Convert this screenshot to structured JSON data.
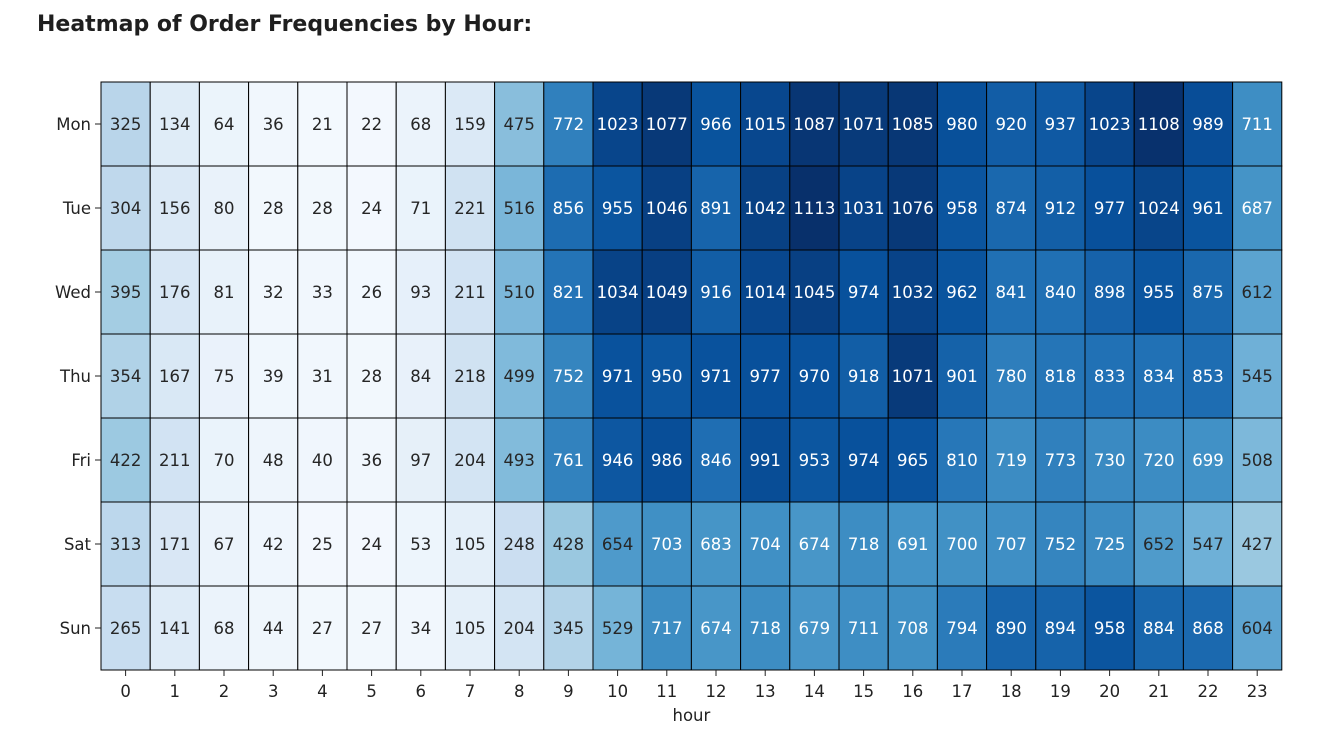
{
  "heading": "Heatmap of Order Frequencies by Hour:",
  "chart_data": {
    "type": "heatmap",
    "title": "",
    "xlabel": "hour",
    "ylabel": "",
    "colormap": "Blues",
    "color_range": [
      0,
      1113
    ],
    "cell_border": "#000000",
    "grid": false,
    "legend": "none",
    "x": [
      "0",
      "1",
      "2",
      "3",
      "4",
      "5",
      "6",
      "7",
      "8",
      "9",
      "10",
      "11",
      "12",
      "13",
      "14",
      "15",
      "16",
      "17",
      "18",
      "19",
      "20",
      "21",
      "22",
      "23"
    ],
    "y": [
      "Mon",
      "Tue",
      "Wed",
      "Thu",
      "Fri",
      "Sat",
      "Sun"
    ],
    "values": [
      [
        325,
        134,
        64,
        36,
        21,
        22,
        68,
        159,
        475,
        772,
        1023,
        1077,
        966,
        1015,
        1087,
        1071,
        1085,
        980,
        920,
        937,
        1023,
        1108,
        989,
        711
      ],
      [
        304,
        156,
        80,
        28,
        28,
        24,
        71,
        221,
        516,
        856,
        955,
        1046,
        891,
        1042,
        1113,
        1031,
        1076,
        958,
        874,
        912,
        977,
        1024,
        961,
        687
      ],
      [
        395,
        176,
        81,
        32,
        33,
        26,
        93,
        211,
        510,
        821,
        1034,
        1049,
        916,
        1014,
        1045,
        974,
        1032,
        962,
        841,
        840,
        898,
        955,
        875,
        612
      ],
      [
        354,
        167,
        75,
        39,
        31,
        28,
        84,
        218,
        499,
        752,
        971,
        950,
        971,
        977,
        970,
        918,
        1071,
        901,
        780,
        818,
        833,
        834,
        853,
        545
      ],
      [
        422,
        211,
        70,
        48,
        40,
        36,
        97,
        204,
        493,
        761,
        946,
        986,
        846,
        991,
        953,
        974,
        965,
        810,
        719,
        773,
        730,
        720,
        699,
        508
      ],
      [
        313,
        171,
        67,
        42,
        25,
        24,
        53,
        105,
        248,
        428,
        654,
        703,
        683,
        704,
        674,
        718,
        691,
        700,
        707,
        752,
        725,
        652,
        547,
        427
      ],
      [
        265,
        141,
        68,
        44,
        27,
        27,
        34,
        105,
        204,
        345,
        529,
        717,
        674,
        718,
        679,
        711,
        708,
        794,
        890,
        894,
        958,
        884,
        868,
        604
      ]
    ]
  }
}
